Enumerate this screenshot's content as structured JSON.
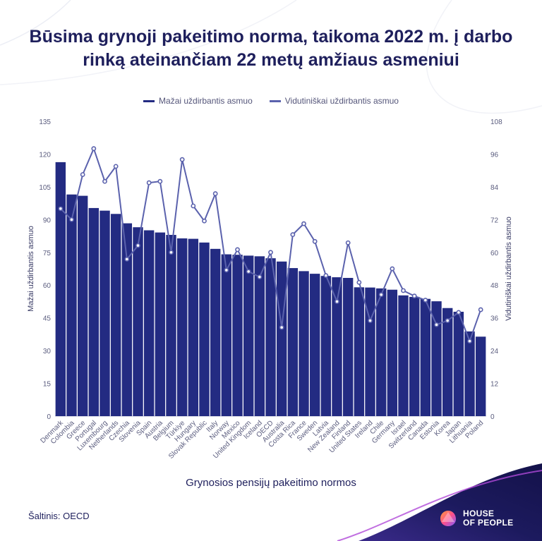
{
  "title": "Būsima grynoji pakeitimo norma, taikoma 2022 m. į darbo rinką ateinančiam 22 metų amžiaus asmeniui",
  "source": "Šaltinis: OECD",
  "logo": {
    "line1": "HOUSE",
    "line2": "OF PEOPLE"
  },
  "colors": {
    "bar": "#232b82",
    "line": "#5b62ad",
    "title": "#1e1f5c",
    "corner": "#1c1a5e"
  },
  "chart_data": {
    "type": "bar",
    "xlabel": "Grynosios pensijų pakeitimo normos",
    "ylabel": "Mažai uždirbantis asmuo",
    "y2label": "Vidutiniškai uždirbantis asmuo",
    "ylim": [
      0,
      135
    ],
    "y2lim": [
      0,
      108
    ],
    "yticks": [
      "0",
      "15",
      "30",
      "45",
      "60",
      "75",
      "90",
      "105",
      "120",
      "135"
    ],
    "y2ticks": [
      "0",
      "12",
      "24",
      "36",
      "48",
      "60",
      "72",
      "84",
      "96",
      "108"
    ],
    "legend_position": "top",
    "categories": [
      "Denmark",
      "Colombia",
      "Greece",
      "Portugal",
      "Luxembourg",
      "Netherlands",
      "Czechia",
      "Slovenia",
      "Spain",
      "Austria",
      "Belgium",
      "Türkiye",
      "Hungary",
      "Slovak Republic",
      "Italy",
      "Norway",
      "Mexico",
      "United Kingdom",
      "Iceland",
      "OECD",
      "Australia",
      "Costa Rica",
      "France",
      "Sweden",
      "Latvia",
      "New Zealand",
      "Finland",
      "United States",
      "Ireland",
      "Chile",
      "Germany",
      "Israel",
      "Switzerland",
      "Canada",
      "Estonia",
      "Korea",
      "Japan",
      "Lithuania",
      "Poland"
    ],
    "series": [
      {
        "name": "Mažai uždirbantis asmuo",
        "type": "bar",
        "axis": "left",
        "values": [
          116.3,
          101.5,
          100.9,
          95.3,
          94.1,
          92.6,
          88.3,
          86.5,
          85.1,
          84.1,
          83.0,
          81.4,
          81.2,
          79.5,
          76.6,
          74.1,
          73.9,
          73.5,
          73.2,
          72.3,
          70.8,
          67.8,
          66.4,
          65.2,
          64.2,
          63.6,
          63.3,
          59.0,
          58.9,
          58.5,
          57.9,
          55.3,
          54.6,
          53.7,
          52.6,
          49.5,
          47.8,
          38.8,
          36.4
        ]
      },
      {
        "name": "Vidutiniškai uždirbantis asmuo",
        "type": "line",
        "axis": "right",
        "values": [
          76.0,
          72.0,
          88.5,
          98.0,
          86.0,
          91.5,
          57.5,
          62.5,
          85.5,
          86.0,
          60.0,
          94.0,
          77.0,
          71.5,
          81.5,
          53.5,
          61.0,
          53.0,
          51.0,
          60.0,
          32.5,
          66.5,
          70.5,
          64.0,
          51.5,
          42.0,
          63.5,
          49.0,
          35.0,
          44.5,
          54.0,
          46.0,
          44.0,
          42.5,
          33.5,
          35.0,
          38.0,
          27.5,
          39.0
        ]
      }
    ]
  }
}
